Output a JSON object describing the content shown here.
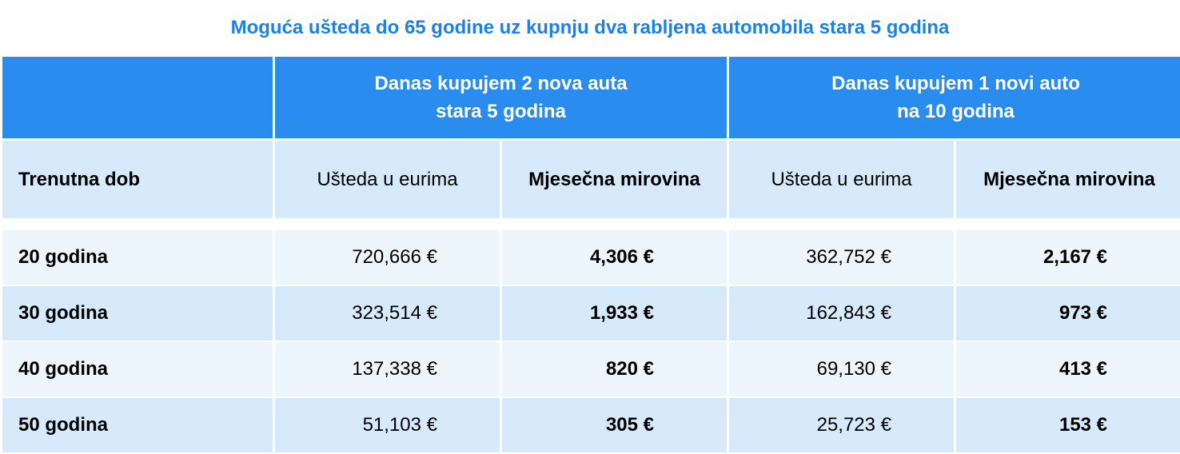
{
  "title": "Moguća ušteda do 65 godine uz kupnju dva rabljena automobila stara 5 godina",
  "colors": {
    "header": "#2b8cef",
    "subheader": "#d6eafc",
    "row_light": "#edf5fd",
    "row_dark": "#d6eafc",
    "title": "#1a80ea"
  },
  "group_headers": [
    {
      "line1": "Danas kupujem 2 nova auta",
      "line2": "stara 5 godina"
    },
    {
      "line1": "Danas kupujem 1 novi auto",
      "line2": "na 10 godina"
    }
  ],
  "columns": [
    "Trenutna dob",
    "Ušteda u eurima",
    "Mjesečna mirovina",
    "Ušteda u eurima",
    "Mjesečna mirovina"
  ],
  "rows": [
    [
      "20 godina",
      "720,666 €",
      "4,306 €",
      "362,752 €",
      "2,167 €"
    ],
    [
      "30 godina",
      "323,514 €",
      "1,933 €",
      "162,843 €",
      "973 €"
    ],
    [
      "40 godina",
      "137,338 €",
      "820 €",
      "69,130 €",
      "413 €"
    ],
    [
      "50 godina",
      "51,103 €",
      "305 €",
      "25,723 €",
      "153 €"
    ]
  ]
}
